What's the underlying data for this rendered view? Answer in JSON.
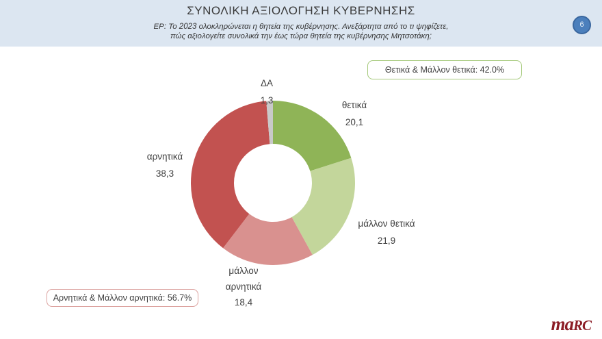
{
  "header": {
    "title": "ΣΥΝΟΛΙΚΗ ΑΞΙΟΛΟΓΗΣΗ ΚΥΒΕΡΝΗΣΗΣ",
    "subtitle_line1": "ΕΡ: Το 2023 ολοκληρώνεται η θητεία της κυβέρνησης. Ανεξάρτητα από το τι ψηφίζετε,",
    "subtitle_line2": "πώς αξιολογείτε συνολικά την έως τώρα θητεία της κυβέρνησης Μητσοτάκη;",
    "page_number": "6"
  },
  "summary_boxes": {
    "positive": {
      "text": "Θετικά & Μάλλον θετικά: 42.0%",
      "border_color": "#a3c878"
    },
    "negative": {
      "text": "Αρνητικά & Μάλλον αρνητικά: 56.7%",
      "border_color": "#dba09d"
    }
  },
  "chart_data": {
    "type": "pie",
    "subtype": "donut",
    "title": "ΣΥΝΟΛΙΚΗ ΑΞΙΟΛΟΓΗΣΗ ΚΥΒΕΡΝΗΣΗΣ",
    "start_angle_deg": -90,
    "direction": "clockwise",
    "inner_radius_ratio": 0.475,
    "legend": "none",
    "slices": [
      {
        "label": "θετικά",
        "value": 20.1,
        "display": "20,1",
        "color": "#8fb457"
      },
      {
        "label": "μάλλον θετικά",
        "value": 21.9,
        "display": "21,9",
        "color": "#c3d69b"
      },
      {
        "label": "μάλλον αρνητικά",
        "value": 18.4,
        "display": "18,4",
        "color": "#d9918f"
      },
      {
        "label": "αρνητικά",
        "value": 38.3,
        "display": "38,3",
        "color": "#c25250"
      },
      {
        "label": "ΔΑ",
        "value": 1.3,
        "display": "1,3",
        "color": "#c9c9c9"
      }
    ]
  },
  "logo": {
    "part1": "ma",
    "part2": "RC"
  },
  "colors": {
    "header_bg": "#dce6f1",
    "page_circle_bg": "#4b7fbc",
    "page_circle_border": "#3a679f",
    "logo_color": "#8c1d26",
    "text_color": "#404040"
  }
}
